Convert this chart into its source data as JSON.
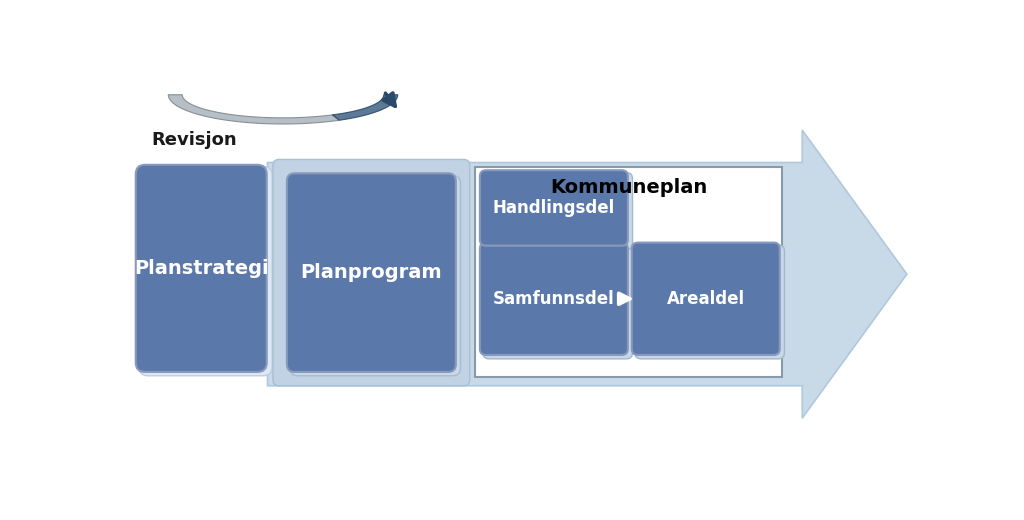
{
  "background_color": "#ffffff",
  "arrow_color": "#c8d9e8",
  "arrow_edge": "#b0c8dc",
  "box_fill": "#5b78ab",
  "box_shadow": "#c0d0e0",
  "box_edge": "#8899bb",
  "planprogram_bg": "#c0d2e4",
  "kommuneplan_bg": "#ffffff",
  "kommuneplan_border": "#8899aa",
  "planstrategi_label": "Planstrategi",
  "planprogram_label": "Planprogram",
  "samfunnsdel_label": "Samfunnsdel",
  "arealdel_label": "Arealdel",
  "handlingsdel_label": "Handlingsdel",
  "kommuneplan_label": "Kommuneplan",
  "revisjon_label": "Revisjon",
  "text_color": "#ffffff",
  "title_color": "#000000",
  "revisjon_color": "#1a1a1a"
}
